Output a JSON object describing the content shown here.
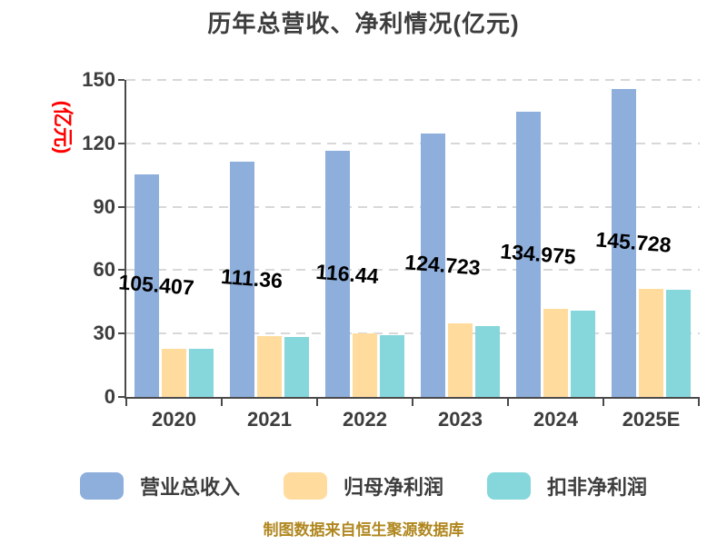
{
  "title": "历年总营收、净利情况(亿元)",
  "footer": "制图数据来自恒生聚源数据库",
  "chart_data": {
    "type": "bar",
    "title": "历年总营收、净利情况(亿元)",
    "ylabel": "(亿元)",
    "ylim": [
      0,
      150
    ],
    "yticks": [
      0,
      30,
      60,
      90,
      120,
      150
    ],
    "grid": true,
    "grid_style": "dashed",
    "legend_position": "bottom",
    "categories": [
      "2020",
      "2021",
      "2022",
      "2023",
      "2024",
      "2025E"
    ],
    "series": [
      {
        "name": "营业总收入",
        "key": "revenue",
        "color": "#8eaedc",
        "values": [
          105.407,
          111.36,
          116.44,
          124.723,
          134.975,
          145.728
        ],
        "data_labels": [
          "105.407",
          "111.36",
          "116.44",
          "124.723",
          "134.975",
          "145.728"
        ]
      },
      {
        "name": "归母净利润",
        "key": "net-profit",
        "color": "#ffdc9e",
        "values": [
          23.0,
          29.0,
          30.1,
          34.7,
          41.9,
          51.3
        ],
        "data_labels": []
      },
      {
        "name": "扣非净利润",
        "key": "non-gaap-net-profit",
        "color": "#85d7db",
        "values": [
          22.9,
          28.5,
          29.4,
          33.6,
          40.9,
          50.6
        ],
        "data_labels": []
      }
    ]
  },
  "colors": {
    "background": "#ffffff",
    "title_text": "#3d3d3d",
    "axis_line": "#4a4a4a",
    "axis_text": "#3d3d3d",
    "gridline": "#d8d8d8",
    "data_label": "#000000",
    "y_unit_label": "#ff0000",
    "footer_text": "#b0871f"
  }
}
